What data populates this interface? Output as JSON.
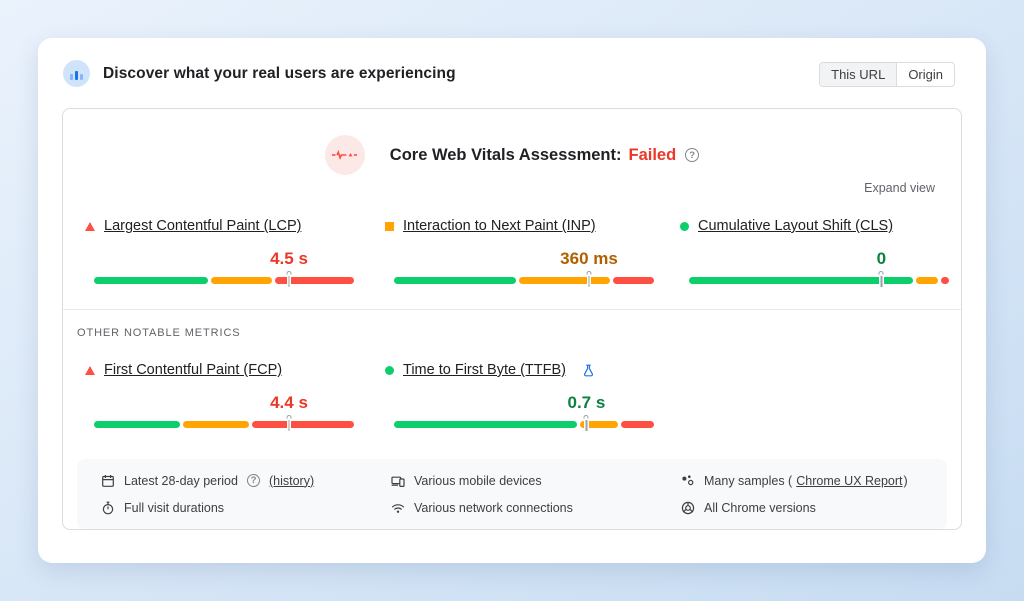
{
  "header": {
    "title": "Discover what your real users are experiencing",
    "scope_toggle": {
      "options": [
        "This URL",
        "Origin"
      ],
      "selected": "This URL"
    }
  },
  "assessment": {
    "title": "Core Web Vitals Assessment:",
    "status": "Failed",
    "expand_label": "Expand view"
  },
  "core_metrics": [
    {
      "id": "lcp",
      "label": "Largest Contentful Paint (LCP)",
      "value": "4.5 s",
      "status": "poor",
      "icon": "triangle",
      "distribution": {
        "good_pct": 45,
        "needs_improvement_pct": 24,
        "poor_pct": 31
      },
      "p75_marker_pct": 75
    },
    {
      "id": "inp",
      "label": "Interaction to Next Paint (INP)",
      "value": "360 ms",
      "status": "ni",
      "icon": "square",
      "distribution": {
        "good_pct": 48,
        "needs_improvement_pct": 36,
        "poor_pct": 16
      },
      "p75_marker_pct": 75
    },
    {
      "id": "cls",
      "label": "Cumulative Layout Shift (CLS)",
      "value": "0",
      "status": "good",
      "icon": "circle",
      "distribution": {
        "good_pct": 88,
        "needs_improvement_pct": 9,
        "poor_pct": 3
      },
      "p75_marker_pct": 74
    }
  ],
  "other_metrics_heading": "OTHER NOTABLE METRICS",
  "other_metrics": [
    {
      "id": "fcp",
      "label": "First Contentful Paint (FCP)",
      "value": "4.4 s",
      "status": "poor",
      "icon": "triangle",
      "distribution": {
        "good_pct": 34,
        "needs_improvement_pct": 26,
        "poor_pct": 40
      },
      "p75_marker_pct": 75
    },
    {
      "id": "ttfb",
      "label": "Time to First Byte (TTFB)",
      "value": "0.7 s",
      "status": "good",
      "icon": "circle",
      "experimental": true,
      "distribution": {
        "good_pct": 72,
        "needs_improvement_pct": 15,
        "poor_pct": 13
      },
      "p75_marker_pct": 74
    }
  ],
  "footer": {
    "columns": [
      {
        "items": [
          {
            "icon": "calendar-icon",
            "text": "Latest 28-day period",
            "help": "?",
            "link": "(history)"
          },
          {
            "icon": "stopwatch-icon",
            "text": "Full visit durations"
          }
        ]
      },
      {
        "items": [
          {
            "icon": "devices-icon",
            "text": "Various mobile devices"
          },
          {
            "icon": "network-icon",
            "text": "Various network connections"
          }
        ]
      },
      {
        "items": [
          {
            "icon": "samples-icon",
            "text": "Many samples (",
            "link": "Chrome UX Report",
            "suffix": ")"
          },
          {
            "icon": "chrome-icon",
            "text": "All Chrome versions"
          }
        ]
      }
    ]
  },
  "colors": {
    "good": "#0cce6b",
    "needs_improvement": "#ffa400",
    "poor": "#ff4e42",
    "good_text": "#0d8043",
    "needs_improvement_text": "#b06000",
    "poor_text": "#ea3829"
  },
  "help_glyph": "?"
}
